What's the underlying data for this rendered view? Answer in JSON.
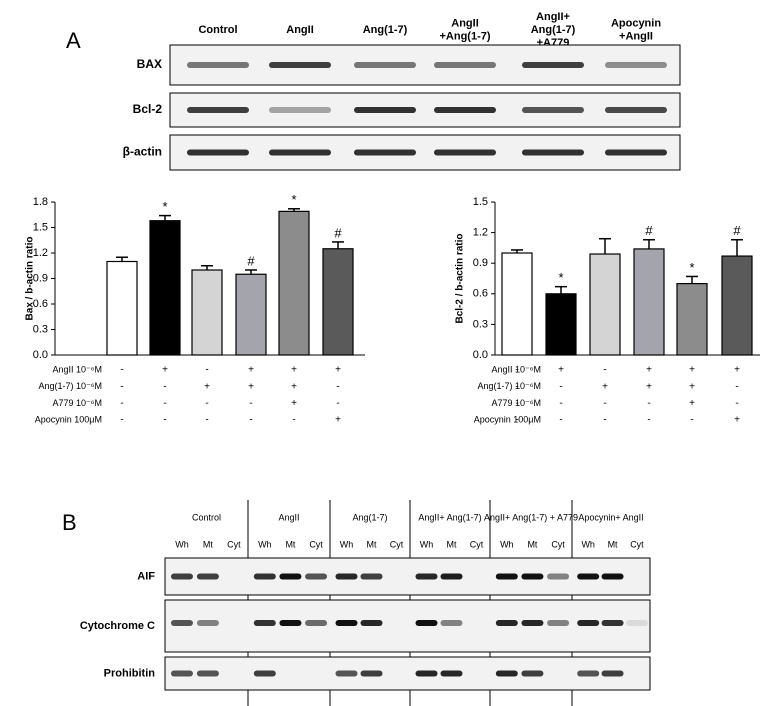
{
  "panel_a": {
    "label": "A",
    "lanes": [
      [
        "Control"
      ],
      [
        "AngII"
      ],
      [
        "Ang(1-7)"
      ],
      [
        "AngII",
        "+Ang(1-7)"
      ],
      [
        "AngII+",
        "Ang(1-7)",
        "+A779"
      ],
      [
        "Apocynin",
        "+AngII"
      ]
    ],
    "rows": [
      "BAX",
      "Bcl-2",
      "β-actin"
    ]
  },
  "chart_data": [
    {
      "type": "bar",
      "ylabel": "Bax / b-actin ratio",
      "ylim": [
        0,
        1.8
      ],
      "yticks": [
        {
          "value": 0,
          "label": "0.0"
        },
        0.3,
        0.6,
        0.9,
        1.2,
        1.5,
        1.8
      ],
      "values": [
        1.1,
        1.58,
        1.0,
        0.95,
        1.69,
        1.25
      ],
      "errors": [
        0.05,
        0.06,
        0.05,
        0.05,
        0.03,
        0.08
      ],
      "colors": [
        "#ffffff",
        "#000000",
        "#d4d4d4",
        "#a4a4ac",
        "#8c8c8c",
        "#5a5a5a"
      ],
      "annotations": [
        null,
        "*",
        null,
        "#",
        "*",
        "#"
      ],
      "treatments": [
        {
          "label": "AngII 10⁻⁶M",
          "signs": [
            "-",
            "+",
            "-",
            "+",
            "+",
            "+"
          ]
        },
        {
          "label": "Ang(1-7) 10⁻⁶M",
          "signs": [
            "-",
            "-",
            "+",
            "+",
            "+",
            "-"
          ]
        },
        {
          "label": "A779 10⁻⁶M",
          "signs": [
            "-",
            "-",
            "-",
            "-",
            "+",
            "-"
          ]
        },
        {
          "label": "Apocynin 100μM",
          "signs": [
            "-",
            "-",
            "-",
            "-",
            "-",
            "+"
          ]
        }
      ]
    },
    {
      "type": "bar",
      "ylabel": "Bcl-2 / b-actin ratio",
      "ylim": [
        0,
        1.5
      ],
      "yticks": [
        {
          "value": 0,
          "label": "0.0"
        },
        0.3,
        0.6,
        0.9,
        1.2,
        1.5
      ],
      "values": [
        1.0,
        0.6,
        0.99,
        1.04,
        0.7,
        0.97
      ],
      "errors": [
        0.03,
        0.07,
        0.15,
        0.09,
        0.07,
        0.16
      ],
      "colors": [
        "#ffffff",
        "#000000",
        "#d4d4d4",
        "#a4a4ac",
        "#8c8c8c",
        "#5a5a5a"
      ],
      "annotations": [
        null,
        "*",
        null,
        "#",
        "*",
        "#"
      ],
      "treatments": [
        {
          "label": "AngII 10⁻⁶M",
          "signs": [
            "-",
            "+",
            "-",
            "+",
            "+",
            "+"
          ]
        },
        {
          "label": "Ang(1-7) 10⁻⁶M",
          "signs": [
            "-",
            "-",
            "+",
            "+",
            "+",
            "-"
          ]
        },
        {
          "label": "A779 10⁻⁶M",
          "signs": [
            "-",
            "-",
            "-",
            "-",
            "+",
            "-"
          ]
        },
        {
          "label": "Apocynin 100μM",
          "signs": [
            "-",
            "-",
            "-",
            "-",
            "-",
            "+"
          ]
        }
      ]
    }
  ],
  "panel_b": {
    "label": "B",
    "groups": [
      "Control",
      "AngII",
      "Ang(1-7)",
      "AngII+ Ang(1-7)",
      "AngII+ Ang(1-7) + A779",
      "Apocynin+ AngII"
    ],
    "subcolumns": [
      "Wh",
      "Mt",
      "Cyt"
    ],
    "rows": [
      "AIF",
      "Cytochrome C",
      "Prohibitin"
    ]
  }
}
